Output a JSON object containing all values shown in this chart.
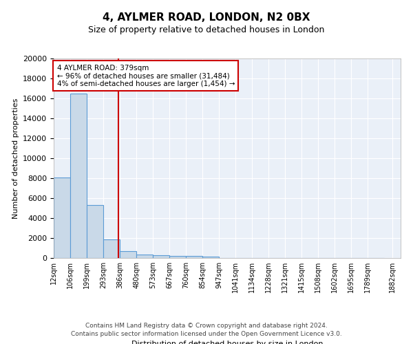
{
  "title": "4, AYLMER ROAD, LONDON, N2 0BX",
  "subtitle": "Size of property relative to detached houses in London",
  "xlabel": "Distribution of detached houses by size in London",
  "ylabel": "Number of detached properties",
  "bar_color": "#c9d9e8",
  "bar_edge_color": "#5b9bd5",
  "background_color": "#eaf0f8",
  "grid_color": "#ffffff",
  "red_line_x": 379,
  "annotation_text": "4 AYLMER ROAD: 379sqm\n← 96% of detached houses are smaller (31,484)\n4% of semi-detached houses are larger (1,454) →",
  "annotation_box_color": "#ffffff",
  "annotation_edge_color": "#cc0000",
  "red_line_color": "#cc0000",
  "categories": [
    "12sqm",
    "106sqm",
    "199sqm",
    "293sqm",
    "386sqm",
    "480sqm",
    "573sqm",
    "667sqm",
    "760sqm",
    "854sqm",
    "947sqm",
    "1041sqm",
    "1134sqm",
    "1228sqm",
    "1321sqm",
    "1415sqm",
    "1508sqm",
    "1602sqm",
    "1695sqm",
    "1789sqm",
    "1882sqm"
  ],
  "bin_left_edges": [
    12,
    106,
    199,
    293,
    386,
    480,
    573,
    667,
    760,
    854,
    947,
    1041,
    1134,
    1228,
    1321,
    1415,
    1508,
    1602,
    1695,
    1789
  ],
  "bin_width": 94,
  "values": [
    8100,
    16500,
    5300,
    1850,
    700,
    350,
    250,
    200,
    175,
    150,
    0,
    0,
    0,
    0,
    0,
    0,
    0,
    0,
    0,
    0
  ],
  "xlim_min": 12,
  "xlim_max": 1976,
  "ylim": [
    0,
    20000
  ],
  "yticks": [
    0,
    2000,
    4000,
    6000,
    8000,
    10000,
    12000,
    14000,
    16000,
    18000,
    20000
  ],
  "footer": "Contains HM Land Registry data © Crown copyright and database right 2024.\nContains public sector information licensed under the Open Government Licence v3.0."
}
